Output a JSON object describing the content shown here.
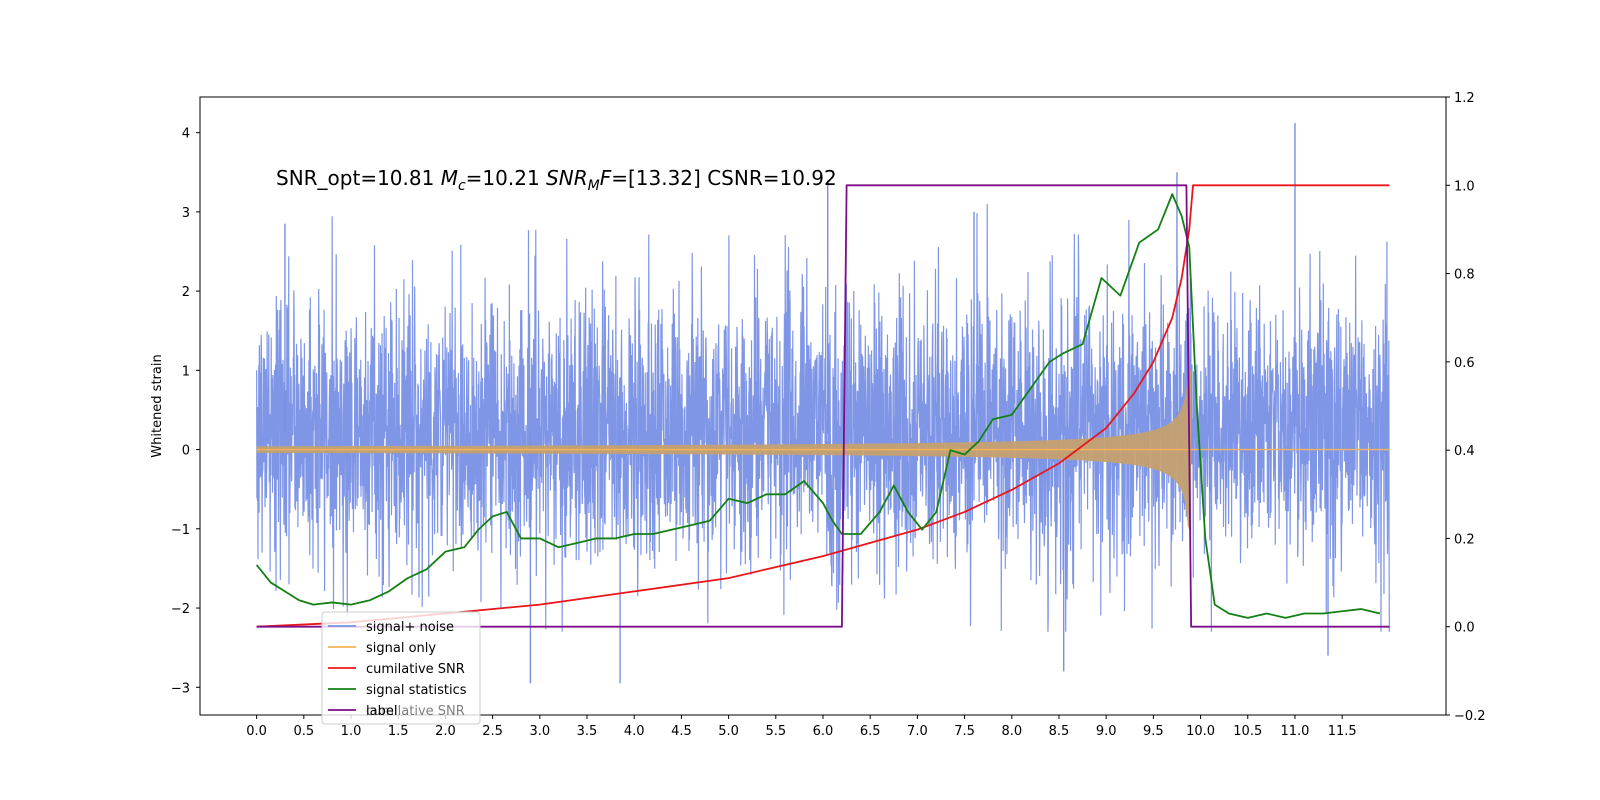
{
  "chart_data": {
    "type": "line",
    "title": "",
    "annotation": {
      "text_parts": [
        "SNR_opt=10.81 ",
        "M",
        "c",
        "=10.21  ",
        "SNR",
        "M",
        "F=[13.32] CSNR=10.92"
      ]
    },
    "ylabel": "Whitened strain",
    "xlabel": "",
    "xlim": [
      -0.6,
      12.6
    ],
    "ylim": [
      -3.35,
      4.45
    ],
    "y2lim": [
      -0.2,
      1.2
    ],
    "x_ticks": [
      0.0,
      0.5,
      1.0,
      1.5,
      2.0,
      2.5,
      3.0,
      3.5,
      4.0,
      4.5,
      5.0,
      5.5,
      6.0,
      6.5,
      7.0,
      7.5,
      8.0,
      8.5,
      9.0,
      9.5,
      10.0,
      10.5,
      11.0,
      11.5
    ],
    "x_tick_labels": [
      "0.0",
      "0.5",
      "1.0",
      "1.5",
      "2.0",
      "2.5",
      "3.0",
      "3.5",
      "4.0",
      "4.5",
      "5.0",
      "5.5",
      "6.0",
      "6.5",
      "7.0",
      "7.5",
      "8.0",
      "8.5",
      "9.0",
      "9.5",
      "10.0",
      "10.5",
      "11.0",
      "11.5"
    ],
    "y_ticks": [
      -3,
      -2,
      -1,
      0,
      1,
      2,
      3,
      4
    ],
    "y_tick_labels": [
      "−3",
      "−2",
      "−1",
      "0",
      "1",
      "2",
      "3",
      "4"
    ],
    "y2_ticks": [
      -0.2,
      0.0,
      0.2,
      0.4,
      0.6,
      0.8,
      1.0,
      1.2
    ],
    "y2_tick_labels": [
      "−0.2",
      "0.0",
      "0.2",
      "0.4",
      "0.6",
      "0.8",
      "1.0",
      "1.2"
    ],
    "legend": {
      "placement": "lower-left",
      "entries": [
        "signal+ noise",
        "signal only",
        "cumilative SNR",
        "signal statistics",
        "label"
      ],
      "ghost_text": "cumilative SNR"
    },
    "series": [
      {
        "name": "signal+ noise",
        "axis": "left",
        "color": "#7890e6",
        "x_range": [
          0.0,
          12.0
        ],
        "amplitude_range": [
          -2.8,
          4.1
        ],
        "spike_points": [
          [
            0.3,
            2.85
          ],
          [
            2.9,
            -2.95
          ],
          [
            3.85,
            -2.95
          ],
          [
            6.05,
            3.4
          ],
          [
            7.6,
            3.0
          ],
          [
            9.75,
            3.5
          ],
          [
            11.0,
            4.12
          ],
          [
            8.55,
            -2.8
          ],
          [
            11.35,
            -2.6
          ]
        ]
      },
      {
        "name": "signal only",
        "axis": "left",
        "color": "#f5b35a",
        "x_range": [
          0.0,
          12.0
        ],
        "merger_time": 9.9,
        "peak_amplitude": 1.0
      },
      {
        "name": "cumilative SNR",
        "axis": "right",
        "color": "#e8161b",
        "x": [
          0.0,
          1.0,
          2.0,
          3.0,
          4.0,
          5.0,
          6.0,
          6.5,
          7.0,
          7.5,
          8.0,
          8.5,
          9.0,
          9.3,
          9.5,
          9.7,
          9.8,
          9.88,
          9.92,
          10.0,
          12.0
        ],
        "values": [
          0.0,
          0.01,
          0.03,
          0.05,
          0.08,
          0.11,
          0.16,
          0.19,
          0.22,
          0.26,
          0.31,
          0.37,
          0.45,
          0.53,
          0.6,
          0.7,
          0.79,
          0.9,
          1.0,
          1.0,
          1.0
        ]
      },
      {
        "name": "signal statistics",
        "axis": "right",
        "color": "#148014",
        "x": [
          0.0,
          0.15,
          0.3,
          0.45,
          0.6,
          0.8,
          1.0,
          1.2,
          1.4,
          1.6,
          1.8,
          2.0,
          2.2,
          2.35,
          2.5,
          2.65,
          2.8,
          3.0,
          3.2,
          3.4,
          3.6,
          3.8,
          4.0,
          4.2,
          4.4,
          4.6,
          4.8,
          5.0,
          5.2,
          5.4,
          5.6,
          5.8,
          6.0,
          6.1,
          6.2,
          6.4,
          6.6,
          6.75,
          6.9,
          7.05,
          7.2,
          7.35,
          7.5,
          7.65,
          7.8,
          8.0,
          8.2,
          8.4,
          8.55,
          8.75,
          8.95,
          9.15,
          9.35,
          9.55,
          9.7,
          9.8,
          9.88,
          9.96,
          10.05,
          10.15,
          10.3,
          10.5,
          10.7,
          10.9,
          11.1,
          11.3,
          11.5,
          11.7,
          11.9
        ],
        "values": [
          0.14,
          0.1,
          0.08,
          0.06,
          0.05,
          0.055,
          0.05,
          0.06,
          0.08,
          0.11,
          0.13,
          0.17,
          0.18,
          0.22,
          0.25,
          0.26,
          0.2,
          0.2,
          0.18,
          0.19,
          0.2,
          0.2,
          0.21,
          0.21,
          0.22,
          0.23,
          0.24,
          0.29,
          0.28,
          0.3,
          0.3,
          0.33,
          0.28,
          0.24,
          0.21,
          0.21,
          0.26,
          0.32,
          0.26,
          0.22,
          0.26,
          0.4,
          0.39,
          0.42,
          0.47,
          0.48,
          0.54,
          0.6,
          0.62,
          0.64,
          0.79,
          0.75,
          0.87,
          0.9,
          0.98,
          0.93,
          0.86,
          0.5,
          0.2,
          0.05,
          0.03,
          0.02,
          0.03,
          0.02,
          0.03,
          0.03,
          0.035,
          0.04,
          0.03
        ]
      },
      {
        "name": "label",
        "axis": "right",
        "color": "#7b0c8a",
        "x": [
          0.0,
          6.2,
          6.25,
          9.85,
          9.9,
          12.0
        ],
        "values": [
          0.0,
          0.0,
          1.0,
          1.0,
          0.0,
          0.0
        ]
      }
    ]
  }
}
